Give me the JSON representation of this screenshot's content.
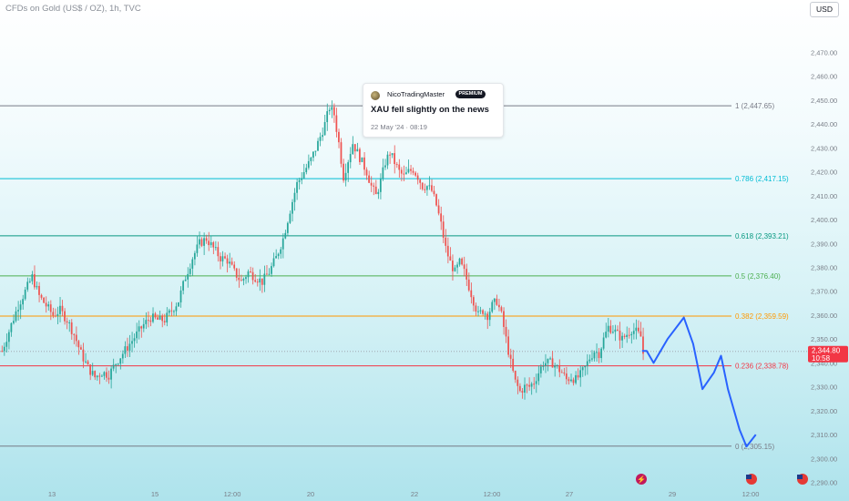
{
  "header": {
    "title": "CFDs on Gold (US$ / OZ), 1h, TVC",
    "currency_button": "USD"
  },
  "post": {
    "author": "NicoTradingMaster",
    "badge": "PREMIUM",
    "text": "XAU fell slightly on the news",
    "date": "22 May '24 · 08:19"
  },
  "colors": {
    "up": "#26a69a",
    "down": "#ef5350",
    "projection": "#2962ff",
    "price_tag": "#f23645"
  },
  "chart_data": {
    "type": "candlestick",
    "title": "CFDs on Gold (US$ / OZ), 1h, TVC",
    "y_axis": {
      "range": [
        2286,
        2482
      ],
      "ticks": [
        "2,290.00",
        "2,300.00",
        "2,310.00",
        "2,320.00",
        "2,330.00",
        "2,340.00",
        "2,350.00",
        "2,360.00",
        "2,370.00",
        "2,380.00",
        "2,390.00",
        "2,400.00",
        "2,410.00",
        "2,420.00",
        "2,430.00",
        "2,440.00",
        "2,450.00",
        "2,460.00",
        "2,470.00"
      ],
      "tick_values": [
        2290,
        2300,
        2310,
        2320,
        2330,
        2340,
        2350,
        2360,
        2370,
        2380,
        2390,
        2400,
        2410,
        2420,
        2430,
        2440,
        2450,
        2460,
        2470
      ]
    },
    "x_axis": {
      "ticks": [
        "13",
        "15",
        "12:00",
        "20",
        "22",
        "12:00",
        "27",
        "29",
        "12:00"
      ]
    },
    "fibonacci_levels": [
      {
        "label": "1 (2,447.65)",
        "value": 2447.65,
        "color": "#787b86"
      },
      {
        "label": "0.786 (2,417.15)",
        "value": 2417.15,
        "color": "#00bcd4"
      },
      {
        "label": "0.618 (2,393.21)",
        "value": 2393.21,
        "color": "#089981"
      },
      {
        "label": "0.5 (2,376.40)",
        "value": 2376.4,
        "color": "#4caf50"
      },
      {
        "label": "0.382 (2,359.59)",
        "value": 2359.59,
        "color": "#ff9800"
      },
      {
        "label": "0.236 (2,338.78)",
        "value": 2338.78,
        "color": "#f23645"
      },
      {
        "label": "0 (2,305.15)",
        "value": 2305.15,
        "color": "#787b86"
      }
    ],
    "current_price": {
      "value": 2344.8,
      "label": "2,344.80",
      "countdown": "10:58"
    },
    "price_path": [
      [
        0,
        2345
      ],
      [
        4,
        2356
      ],
      [
        7,
        2364
      ],
      [
        10,
        2370
      ],
      [
        13,
        2376
      ],
      [
        16,
        2368
      ],
      [
        19,
        2364
      ],
      [
        22,
        2360
      ],
      [
        25,
        2362
      ],
      [
        28,
        2358
      ],
      [
        31,
        2352
      ],
      [
        34,
        2344
      ],
      [
        37,
        2338
      ],
      [
        40,
        2334
      ],
      [
        43,
        2336
      ],
      [
        46,
        2335
      ],
      [
        49,
        2340
      ],
      [
        52,
        2344
      ],
      [
        55,
        2348
      ],
      [
        58,
        2352
      ],
      [
        61,
        2356
      ],
      [
        64,
        2359
      ],
      [
        67,
        2358
      ],
      [
        70,
        2358
      ],
      [
        73,
        2362
      ],
      [
        76,
        2366
      ],
      [
        79,
        2376
      ],
      [
        82,
        2384
      ],
      [
        85,
        2390
      ],
      [
        88,
        2392
      ],
      [
        91,
        2388
      ],
      [
        94,
        2384
      ],
      [
        97,
        2383
      ],
      [
        100,
        2378
      ],
      [
        103,
        2374
      ],
      [
        106,
        2378
      ],
      [
        109,
        2376
      ],
      [
        112,
        2374
      ],
      [
        115,
        2378
      ],
      [
        118,
        2384
      ],
      [
        121,
        2392
      ],
      [
        124,
        2404
      ],
      [
        127,
        2415
      ],
      [
        130,
        2420
      ],
      [
        133,
        2425
      ],
      [
        136,
        2432
      ],
      [
        139,
        2440
      ],
      [
        141,
        2447
      ],
      [
        143,
        2444
      ],
      [
        145,
        2432
      ],
      [
        147,
        2418
      ],
      [
        149,
        2425
      ],
      [
        151,
        2432
      ],
      [
        153,
        2428
      ],
      [
        155,
        2424
      ],
      [
        157,
        2420
      ],
      [
        159,
        2414
      ],
      [
        161,
        2410
      ],
      [
        163,
        2416
      ],
      [
        165,
        2424
      ],
      [
        167,
        2428
      ],
      [
        169,
        2424
      ],
      [
        171,
        2420
      ],
      [
        173,
        2418
      ],
      [
        175,
        2420
      ],
      [
        177,
        2421
      ],
      [
        179,
        2418
      ],
      [
        181,
        2414
      ],
      [
        183,
        2414
      ],
      [
        185,
        2412
      ],
      [
        187,
        2406
      ],
      [
        189,
        2398
      ],
      [
        191,
        2388
      ],
      [
        193,
        2382
      ],
      [
        195,
        2378
      ],
      [
        197,
        2382
      ],
      [
        199,
        2378
      ],
      [
        201,
        2372
      ],
      [
        203,
        2366
      ],
      [
        205,
        2360
      ],
      [
        207,
        2362
      ],
      [
        209,
        2360
      ],
      [
        211,
        2364
      ],
      [
        213,
        2366
      ],
      [
        215,
        2360
      ],
      [
        217,
        2350
      ],
      [
        219,
        2340
      ],
      [
        221,
        2332
      ],
      [
        223,
        2328
      ],
      [
        225,
        2330
      ],
      [
        227,
        2330
      ],
      [
        229,
        2332
      ],
      [
        231,
        2336
      ],
      [
        233,
        2340
      ],
      [
        235,
        2340
      ],
      [
        237,
        2340
      ],
      [
        239,
        2338
      ],
      [
        241,
        2336
      ],
      [
        243,
        2333
      ],
      [
        245,
        2334
      ],
      [
        247,
        2333
      ],
      [
        249,
        2335
      ],
      [
        251,
        2338
      ],
      [
        253,
        2342
      ],
      [
        255,
        2345
      ],
      [
        257,
        2344
      ],
      [
        259,
        2350
      ],
      [
        261,
        2355
      ],
      [
        263,
        2354
      ],
      [
        265,
        2352
      ],
      [
        267,
        2350
      ],
      [
        269,
        2352
      ],
      [
        271,
        2354
      ],
      [
        273,
        2353
      ],
      [
        275,
        2351
      ],
      [
        276,
        2344
      ]
    ],
    "projection_path": [
      [
        276,
        2345
      ],
      [
        278,
        2345
      ],
      [
        281,
        2340
      ],
      [
        287,
        2350
      ],
      [
        294,
        2359
      ],
      [
        298,
        2348
      ],
      [
        302,
        2329
      ],
      [
        307,
        2336
      ],
      [
        310,
        2343
      ],
      [
        313,
        2329
      ],
      [
        318,
        2312
      ],
      [
        321,
        2305
      ],
      [
        325,
        2310
      ]
    ],
    "annotations": [
      {
        "text": "XAU fell slightly on the news",
        "type": "idea_note"
      }
    ]
  }
}
